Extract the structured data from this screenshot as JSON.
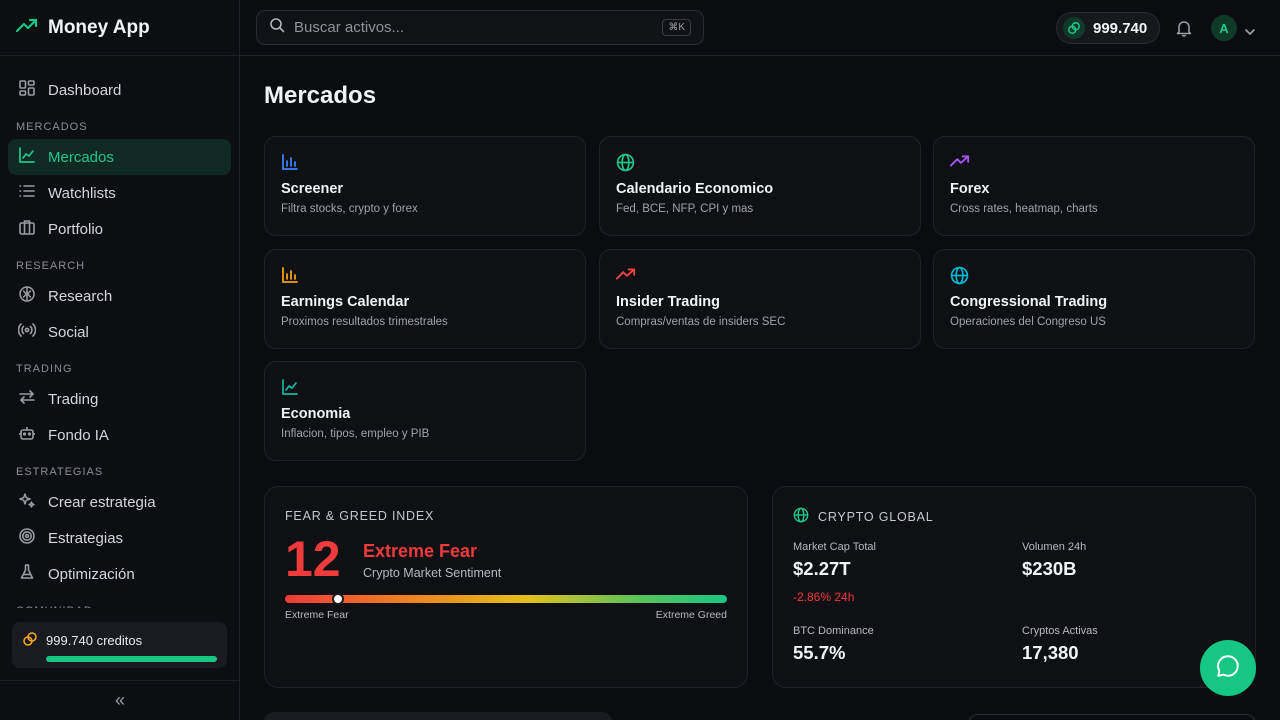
{
  "brand": {
    "name": "Money App",
    "accent": "#16c784"
  },
  "sidebar": {
    "top_items": [
      {
        "label": "Dashboard",
        "icon": "dashboard-icon"
      }
    ],
    "sections": [
      {
        "title": "MERCADOS",
        "items": [
          {
            "label": "Mercados",
            "icon": "chart-line-icon",
            "active": true
          },
          {
            "label": "Watchlists",
            "icon": "list-icon"
          },
          {
            "label": "Portfolio",
            "icon": "briefcase-icon"
          }
        ]
      },
      {
        "title": "RESEARCH",
        "items": [
          {
            "label": "Research",
            "icon": "brain-icon"
          },
          {
            "label": "Social",
            "icon": "radio-icon"
          }
        ]
      },
      {
        "title": "TRADING",
        "items": [
          {
            "label": "Trading",
            "icon": "swap-icon"
          },
          {
            "label": "Fondo IA",
            "icon": "bot-icon"
          }
        ]
      },
      {
        "title": "ESTRATEGIAS",
        "items": [
          {
            "label": "Crear estrategia",
            "icon": "sparkles-icon"
          },
          {
            "label": "Estrategias",
            "icon": "target-icon"
          },
          {
            "label": "Optimización",
            "icon": "flask-icon"
          }
        ]
      },
      {
        "title": "COMUNIDAD",
        "items": []
      }
    ],
    "credits": {
      "label": "999.740 creditos",
      "fill_fraction": 1.0
    },
    "collapse_label": "«"
  },
  "topbar": {
    "search_placeholder": "Buscar activos...",
    "search_shortcut": "⌘K",
    "balance": "999.740",
    "avatar_initial": "A"
  },
  "main": {
    "title": "Mercados",
    "cards": [
      {
        "title": "Screener",
        "desc": "Filtra stocks, crypto y forex",
        "icon": "bar-chart-icon",
        "color": "#3b82f6"
      },
      {
        "title": "Calendario Economico",
        "desc": "Fed, BCE, NFP, CPI y mas",
        "icon": "globe-icon",
        "color": "#22c58b"
      },
      {
        "title": "Forex",
        "desc": "Cross rates, heatmap, charts",
        "icon": "trending-up-icon",
        "color": "#a855f7"
      },
      {
        "title": "Earnings Calendar",
        "desc": "Proximos resultados trimestrales",
        "icon": "bar-chart-icon",
        "color": "#f59e0b"
      },
      {
        "title": "Insider Trading",
        "desc": "Compras/ventas de insiders SEC",
        "icon": "trending-up-icon",
        "color": "#ef4444"
      },
      {
        "title": "Congressional Trading",
        "desc": "Operaciones del Congreso US",
        "icon": "globe-icon",
        "color": "#06b6d4"
      },
      {
        "title": "Economia",
        "desc": "Inflacion, tipos, empleo y PIB",
        "icon": "chart-line-icon",
        "color": "#14b8a6"
      }
    ],
    "fear_greed": {
      "label": "FEAR & GREED INDEX",
      "value": "12",
      "status": "Extreme Fear",
      "subtitle": "Crypto Market Sentiment",
      "min_label": "Extreme Fear",
      "max_label": "Extreme Greed",
      "index": 12
    },
    "crypto_global": {
      "label": "CRYPTO GLOBAL",
      "market_cap_label": "Market Cap Total",
      "market_cap": "$2.27T",
      "market_cap_change": "-2.86% 24h",
      "volume_label": "Volumen 24h",
      "volume": "$230B",
      "btc_dom_label": "BTC Dominance",
      "btc_dom": "55.7%",
      "active_label": "Cryptos Activas",
      "active": "17,380"
    }
  }
}
